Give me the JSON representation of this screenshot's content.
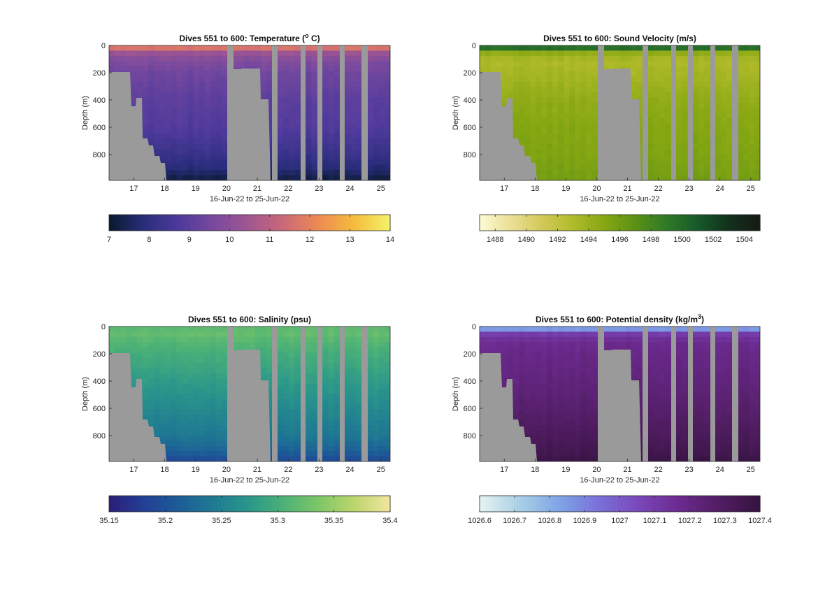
{
  "figure": {
    "background": "#ffffff",
    "ground_color": "#9a9a9a"
  },
  "chart_data": [
    {
      "type": "heatmap",
      "title": "Dives 551 to 600: Temperature (",
      "title_sup": "o",
      "title_end": " C)",
      "variable": "Temperature",
      "units": "°C",
      "xlabel": "16-Jun-22 to 25-Jun-22",
      "ylabel": "Depth (m)",
      "x_ticks": [
        "17",
        "18",
        "19",
        "20",
        "21",
        "22",
        "23",
        "24",
        "25"
      ],
      "xlim_days": [
        16.2,
        25.3
      ],
      "y_ticks": [
        "0",
        "200",
        "400",
        "600",
        "800"
      ],
      "ylim": [
        0,
        990
      ],
      "y_reversed": true,
      "colorbar": {
        "range": [
          7,
          14
        ],
        "tick_values": [
          7,
          8,
          9,
          10,
          11,
          12,
          13,
          14
        ],
        "tick_labels": [
          "7",
          "8",
          "9",
          "10",
          "11",
          "12",
          "13",
          "14"
        ],
        "colormap": [
          "#071a2c",
          "#2a2d7c",
          "#4f3a9c",
          "#7a4a9e",
          "#a25690",
          "#cc6a78",
          "#ee8c52",
          "#f6bd3e",
          "#f3f26c"
        ]
      },
      "profile": {
        "depths": [
          0,
          30,
          60,
          120,
          200,
          400,
          600,
          800,
          900,
          990
        ],
        "values": [
          12.2,
          11.3,
          10.2,
          9.7,
          9.4,
          9.0,
          8.8,
          8.2,
          7.8,
          7.2
        ]
      }
    },
    {
      "type": "heatmap",
      "title": "Dives 551 to 600: Sound Velocity (m/s)",
      "variable": "Sound Velocity",
      "units": "m/s",
      "xlabel": "16-Jun-22 to 25-Jun-22",
      "ylabel": "Depth (m)",
      "x_ticks": [
        "17",
        "18",
        "19",
        "20",
        "21",
        "22",
        "23",
        "24",
        "25"
      ],
      "xlim_days": [
        16.2,
        25.3
      ],
      "y_ticks": [
        "0",
        "200",
        "400",
        "600",
        "800"
      ],
      "ylim": [
        0,
        990
      ],
      "y_reversed": true,
      "colorbar": {
        "range": [
          1487,
          1505
        ],
        "tick_values": [
          1488,
          1490,
          1492,
          1494,
          1496,
          1498,
          1500,
          1502,
          1504
        ],
        "tick_labels": [
          "1488",
          "1490",
          "1492",
          "1494",
          "1496",
          "1498",
          "1500",
          "1502",
          "1504"
        ],
        "colormap": [
          "#fdfbd4",
          "#eadf95",
          "#d2c95a",
          "#b1bb2a",
          "#86a712",
          "#5b9115",
          "#2f7a28",
          "#175a2a",
          "#11301c",
          "#161a14"
        ]
      },
      "profile": {
        "depths": [
          0,
          30,
          60,
          120,
          200,
          400,
          600,
          800,
          900,
          990
        ],
        "values": [
          1500.5,
          1499.2,
          1494.0,
          1493.2,
          1493.5,
          1494.5,
          1495.0,
          1495.3,
          1495.6,
          1495.8
        ]
      }
    },
    {
      "type": "heatmap",
      "title": "Dives 551 to 600: Salinity (psu)",
      "variable": "Salinity",
      "units": "psu",
      "xlabel": "16-Jun-22 to 25-Jun-22",
      "ylabel": "Depth (m)",
      "x_ticks": [
        "17",
        "18",
        "19",
        "20",
        "21",
        "22",
        "23",
        "24",
        "25"
      ],
      "xlim_days": [
        16.2,
        25.3
      ],
      "y_ticks": [
        "0",
        "200",
        "400",
        "600",
        "800"
      ],
      "ylim": [
        0,
        990
      ],
      "y_reversed": true,
      "colorbar": {
        "range": [
          35.15,
          35.4
        ],
        "tick_values": [
          35.15,
          35.2,
          35.25,
          35.3,
          35.35,
          35.4
        ],
        "tick_labels": [
          "35.15",
          "35.2",
          "35.25",
          "35.3",
          "35.35",
          "35.4"
        ],
        "colormap": [
          "#2b1e78",
          "#233f96",
          "#1c5d97",
          "#1f7b92",
          "#2b978a",
          "#4db276",
          "#80c766",
          "#bcd56e",
          "#f2e7a0"
        ]
      },
      "profile": {
        "depths": [
          0,
          30,
          60,
          120,
          200,
          400,
          600,
          800,
          900,
          990
        ],
        "values": [
          35.31,
          35.32,
          35.32,
          35.31,
          35.3,
          35.28,
          35.26,
          35.24,
          35.22,
          35.19
        ]
      }
    },
    {
      "type": "heatmap",
      "title": "Dives 551 to 600: Potential density (kg/m",
      "title_sup": "3",
      "title_end": ")",
      "variable": "Potential density",
      "units": "kg/m³",
      "xlabel": "16-Jun-22 to 25-Jun-22",
      "ylabel": "Depth (m)",
      "x_ticks": [
        "17",
        "18",
        "19",
        "20",
        "21",
        "22",
        "23",
        "24",
        "25"
      ],
      "xlim_days": [
        16.2,
        25.3
      ],
      "y_ticks": [
        "0",
        "200",
        "400",
        "600",
        "800"
      ],
      "ylim": [
        0,
        990
      ],
      "y_reversed": true,
      "colorbar": {
        "range": [
          1026.6,
          1027.4
        ],
        "tick_values": [
          1026.6,
          1026.7,
          1026.8,
          1026.9,
          1027,
          1027.1,
          1027.2,
          1027.3,
          1027.4
        ],
        "tick_labels": [
          "1026.6",
          "1026.7",
          "1026.8",
          "1026.9",
          "1027",
          "1027.1",
          "1027.2",
          "1027.3",
          "1027.4"
        ],
        "colormap": [
          "#e6f3f1",
          "#a9cfe6",
          "#7ea4e6",
          "#7a6fd8",
          "#7a46b8",
          "#6b2a8e",
          "#511d62",
          "#351340"
        ]
      },
      "profile": {
        "depths": [
          0,
          30,
          60,
          120,
          200,
          400,
          600,
          800,
          900,
          990
        ],
        "values": [
          1026.78,
          1026.9,
          1027.12,
          1027.17,
          1027.19,
          1027.22,
          1027.26,
          1027.31,
          1027.34,
          1027.38
        ]
      }
    }
  ]
}
